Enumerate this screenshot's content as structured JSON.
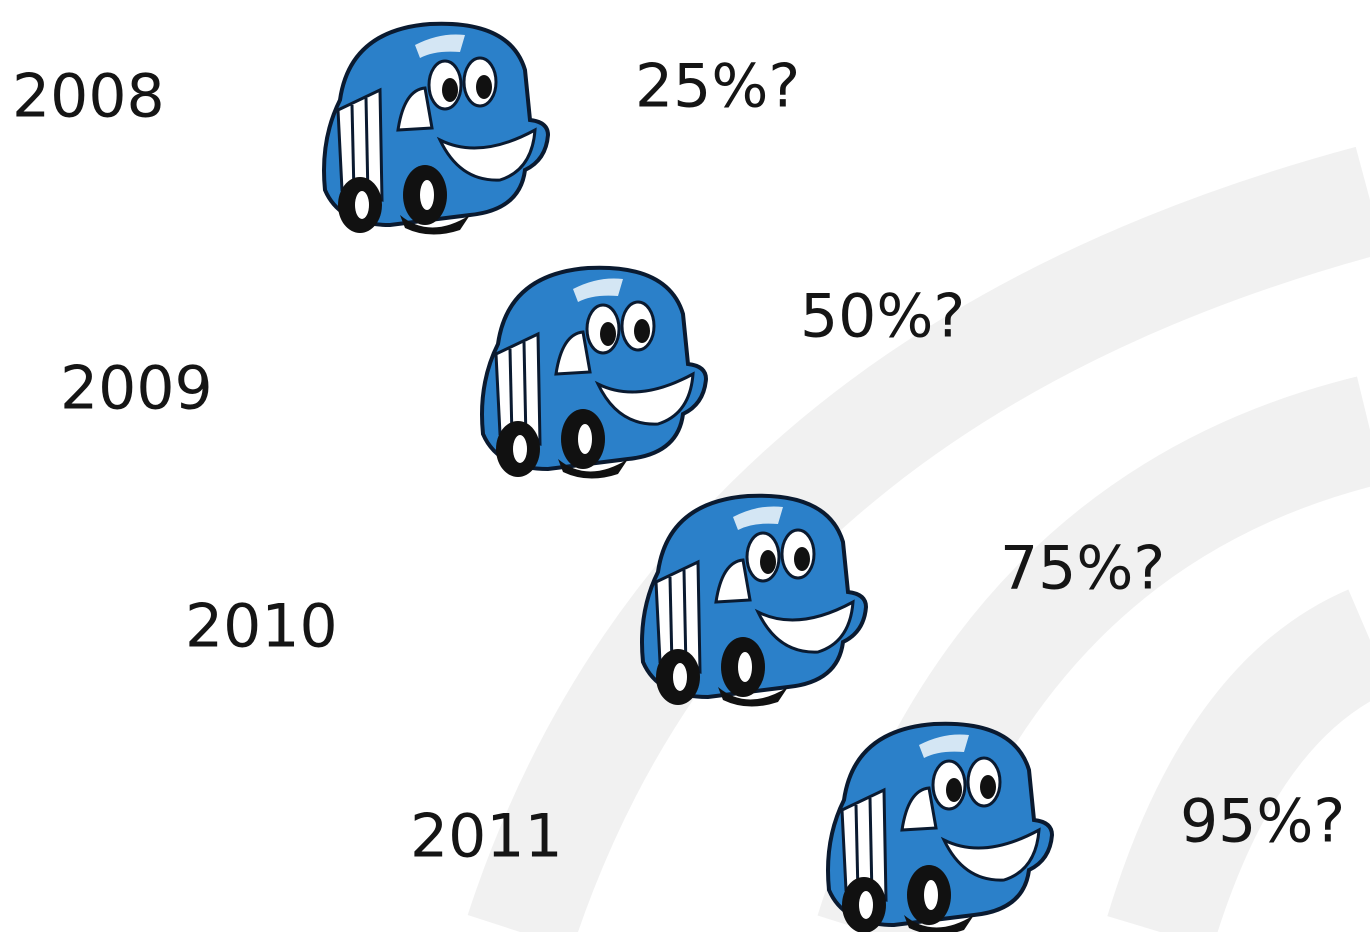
{
  "rows": [
    {
      "year": "2008",
      "label": "25%?"
    },
    {
      "year": "2009",
      "label": "50%?"
    },
    {
      "year": "2010",
      "label": "75%?"
    },
    {
      "year": "2011",
      "label": "95%?"
    }
  ]
}
